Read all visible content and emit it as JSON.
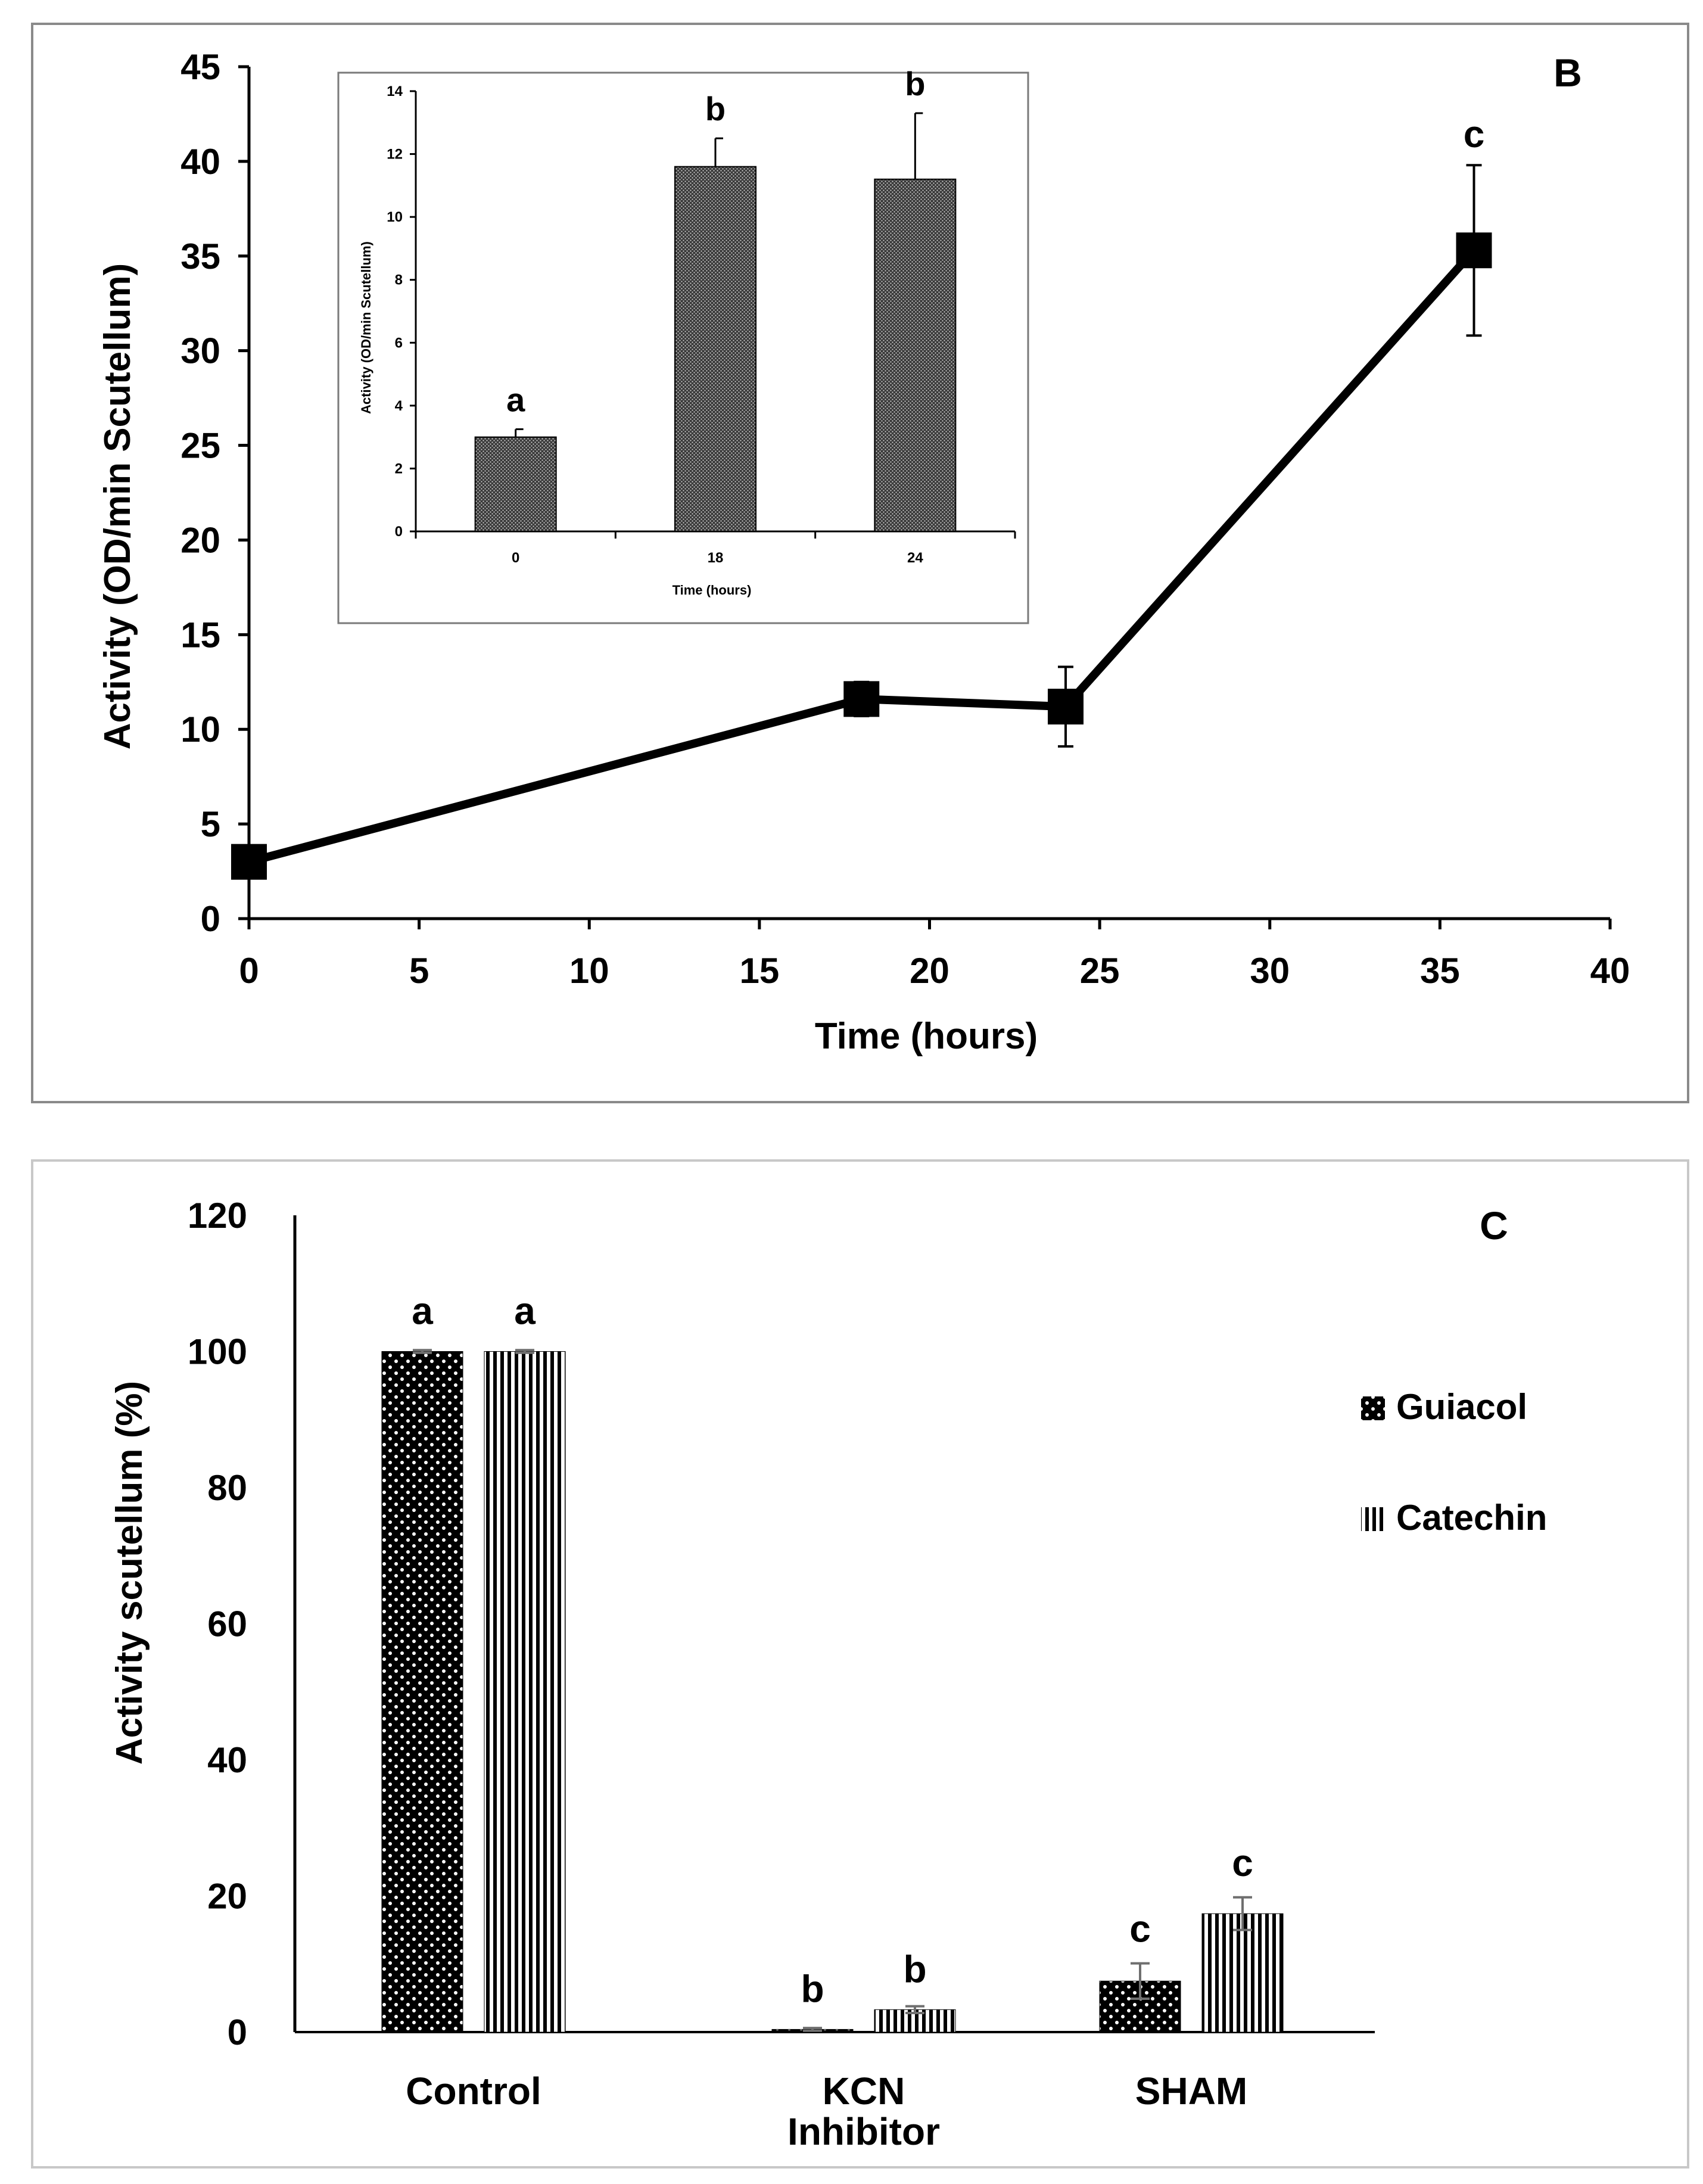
{
  "chart_data": [
    {
      "panel": "B",
      "type": "line",
      "title": "",
      "panel_label": "B",
      "xlabel": "Time (hours)",
      "ylabel": "Activity (OD/min  Scutellum)",
      "xlim": [
        0,
        40
      ],
      "ylim": [
        0,
        45
      ],
      "xticks": [
        0,
        5,
        10,
        15,
        20,
        25,
        30,
        35,
        40
      ],
      "yticks": [
        0,
        5,
        10,
        15,
        20,
        25,
        30,
        35,
        40,
        45
      ],
      "series": [
        {
          "name": "Activity",
          "x": [
            0,
            18,
            24,
            36
          ],
          "values": [
            3.0,
            11.6,
            11.2,
            35.3
          ],
          "errors": [
            0.3,
            0.9,
            2.1,
            4.5
          ]
        }
      ],
      "significance": [
        {
          "x": 36,
          "label": "c"
        }
      ],
      "grid": false,
      "legend": "none"
    },
    {
      "panel": "B-inset",
      "type": "bar",
      "title": "",
      "xlabel": "Time (hours)",
      "ylabel": "Activity (OD/min  Scutellum)",
      "categories": [
        "0",
        "18",
        "24"
      ],
      "values": [
        3.0,
        11.6,
        11.2
      ],
      "errors": [
        0.25,
        0.9,
        2.1
      ],
      "ylim": [
        0,
        14
      ],
      "yticks": [
        0,
        2,
        4,
        6,
        8,
        10,
        12,
        14
      ],
      "significance": [
        "a",
        "b",
        "b"
      ],
      "grid": false,
      "legend": "none"
    },
    {
      "panel": "C",
      "type": "bar",
      "title": "",
      "panel_label": "C",
      "xlabel": "",
      "ylabel": "Activity scutellum (%)",
      "categories": [
        "Control",
        "KCN\nInhibitor",
        "SHAM"
      ],
      "ylim": [
        0,
        120
      ],
      "yticks": [
        0,
        20,
        40,
        60,
        80,
        100,
        120
      ],
      "series": [
        {
          "name": "Guiacol",
          "values": [
            100,
            0.4,
            7.5
          ],
          "errors": [
            0.2,
            0.2,
            2.6
          ],
          "significance": [
            "a",
            "b",
            "c"
          ]
        },
        {
          "name": "Catechin",
          "values": [
            100,
            3.3,
            17.4
          ],
          "errors": [
            0.2,
            0.5,
            2.4
          ],
          "significance": [
            "a",
            "b",
            "c"
          ]
        }
      ],
      "grid": false,
      "legend": "right"
    }
  ]
}
